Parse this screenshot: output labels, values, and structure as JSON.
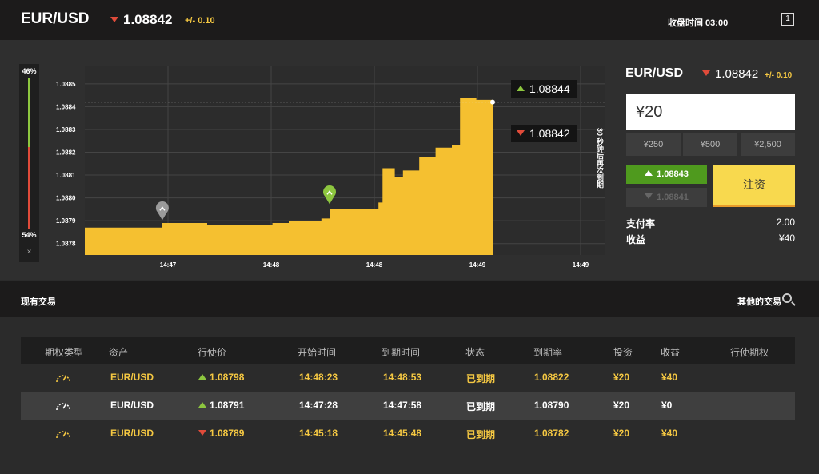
{
  "header": {
    "symbol": "EUR/USD",
    "price": "1.08842",
    "change": "+/- 0.10",
    "close_time": "收盘时间 03:00",
    "window_icon_label": "1"
  },
  "sentiment": {
    "top_pct": "46%",
    "bottom_pct": "54%",
    "close": "×"
  },
  "chart_data": {
    "type": "area",
    "y_ticks": [
      "1.0885",
      "1.0884",
      "1.0883",
      "1.0882",
      "1.0881",
      "1.0880",
      "1.0879",
      "1.0878"
    ],
    "x_ticks": [
      "14:47",
      "14:48",
      "14:48",
      "14:49",
      "14:49"
    ],
    "ylim": [
      1.08775,
      1.08858
    ],
    "area_color": "#f5c030",
    "current_price_line": 1.08842,
    "series": [
      {
        "x": 0,
        "y": 1.08787
      },
      {
        "x": 0.17,
        "y": 1.08787
      },
      {
        "x": 0.19,
        "y": 1.08789
      },
      {
        "x": 0.28,
        "y": 1.08789
      },
      {
        "x": 0.3,
        "y": 1.08788
      },
      {
        "x": 0.46,
        "y": 1.08789
      },
      {
        "x": 0.5,
        "y": 1.0879
      },
      {
        "x": 0.58,
        "y": 1.08791
      },
      {
        "x": 0.6,
        "y": 1.08795
      },
      {
        "x": 0.72,
        "y": 1.08798
      },
      {
        "x": 0.73,
        "y": 1.08813
      },
      {
        "x": 0.76,
        "y": 1.08809
      },
      {
        "x": 0.78,
        "y": 1.08812
      },
      {
        "x": 0.82,
        "y": 1.08818
      },
      {
        "x": 0.86,
        "y": 1.08822
      },
      {
        "x": 0.9,
        "y": 1.08823
      },
      {
        "x": 0.92,
        "y": 1.08844
      },
      {
        "x": 0.96,
        "y": 1.08843
      },
      {
        "x": 1.0,
        "y": 1.08842
      }
    ],
    "markers": [
      {
        "x": 0.19,
        "y": 1.08791,
        "kind": "down",
        "color": "#9a9a9a"
      },
      {
        "x": 0.6,
        "y": 1.08798,
        "kind": "up",
        "color": "#8dc63f"
      }
    ]
  },
  "quotes": {
    "call": "1.08844",
    "put": "1.08842"
  },
  "chart_side_label": "30 秒钟后再次到期",
  "trade_panel": {
    "symbol": "EUR/USD",
    "price": "1.08842",
    "change": "+/- 0.10",
    "amount": "¥20",
    "presets": [
      "¥250",
      "¥500",
      "¥2,500"
    ],
    "call_price": "1.08843",
    "put_price": "1.08841",
    "invest_label": "注资",
    "payout_label": "支付率",
    "payout_value": "2.00",
    "profit_label": "收益",
    "profit_value": "¥40"
  },
  "trades_section": {
    "title": "现有交易",
    "other_trades": "其他的交易"
  },
  "table": {
    "headers": [
      "期权类型",
      "资产",
      "行使价",
      "开始时间",
      "到期时间",
      "状态",
      "到期率",
      "投资",
      "收益",
      "行使期权"
    ],
    "rows": [
      {
        "asset": "EUR/USD",
        "dir": "up",
        "strike": "1.08798",
        "start": "14:48:23",
        "end": "14:48:53",
        "status": "已到期",
        "rate": "1.08822",
        "invest": "¥20",
        "profit": "¥40",
        "style": "hl"
      },
      {
        "asset": "EUR/USD",
        "dir": "up",
        "strike": "1.08791",
        "start": "14:47:28",
        "end": "14:47:58",
        "status": "已到期",
        "rate": "1.08790",
        "invest": "¥20",
        "profit": "¥0",
        "style": "norm"
      },
      {
        "asset": "EUR/USD",
        "dir": "down",
        "strike": "1.08789",
        "start": "14:45:18",
        "end": "14:45:48",
        "status": "已到期",
        "rate": "1.08782",
        "invest": "¥20",
        "profit": "¥40",
        "style": "hl"
      }
    ]
  }
}
